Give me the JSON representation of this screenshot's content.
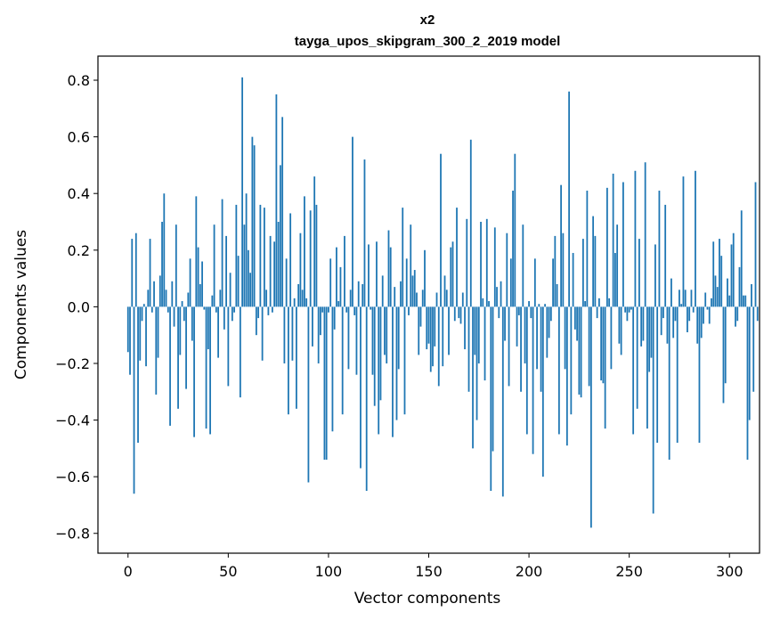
{
  "chart_data": {
    "type": "bar",
    "title_line1": "x2",
    "title_line2": "tayga_upos_skipgram_300_2_2019 model",
    "xlabel": "Vector components",
    "ylabel": "Components values",
    "xlim": [
      -15,
      315
    ],
    "ylim": [
      -0.87,
      0.885
    ],
    "xticks": [
      0,
      50,
      100,
      150,
      200,
      250,
      300
    ],
    "yticks": [
      -0.8,
      -0.6,
      -0.4,
      -0.2,
      0.0,
      0.2,
      0.4,
      0.6,
      0.8
    ],
    "ytick_labels": [
      "−0.8",
      "−0.6",
      "−0.4",
      "−0.2",
      "0.0",
      "0.2",
      "0.4",
      "0.6",
      "0.8"
    ],
    "bar_color": "#1f77b4",
    "grid": false,
    "values": [
      -0.16,
      -0.24,
      0.24,
      -0.66,
      0.26,
      -0.48,
      -0.19,
      -0.05,
      0.01,
      -0.21,
      0.06,
      0.24,
      -0.02,
      0.09,
      -0.31,
      -0.18,
      0.11,
      0.3,
      0.4,
      0.06,
      -0.02,
      -0.42,
      0.09,
      -0.07,
      0.29,
      -0.36,
      -0.17,
      0.02,
      -0.05,
      -0.29,
      0.05,
      0.17,
      -0.12,
      -0.46,
      0.39,
      0.21,
      0.08,
      0.16,
      -0.01,
      -0.43,
      -0.15,
      -0.45,
      0.04,
      0.29,
      -0.02,
      -0.18,
      0.06,
      0.38,
      -0.08,
      0.25,
      -0.28,
      0.12,
      -0.05,
      -0.02,
      0.36,
      0.18,
      -0.32,
      0.81,
      0.29,
      0.4,
      0.2,
      0.12,
      0.6,
      0.57,
      -0.1,
      -0.04,
      0.36,
      -0.19,
      0.35,
      0.06,
      -0.03,
      0.25,
      -0.02,
      0.23,
      0.75,
      0.3,
      0.5,
      0.67,
      -0.2,
      0.17,
      -0.38,
      0.33,
      -0.19,
      0.03,
      -0.36,
      0.08,
      0.26,
      0.06,
      0.39,
      0.03,
      -0.62,
      0.34,
      -0.14,
      0.46,
      0.36,
      -0.2,
      -0.1,
      -0.02,
      -0.54,
      -0.54,
      -0.02,
      0.17,
      -0.44,
      -0.08,
      0.21,
      0.02,
      0.14,
      -0.38,
      0.25,
      -0.02,
      -0.22,
      0.06,
      0.6,
      -0.03,
      -0.24,
      0.09,
      -0.57,
      0.08,
      0.52,
      -0.65,
      0.22,
      -0.01,
      -0.24,
      -0.35,
      0.23,
      -0.45,
      -0.33,
      0.11,
      -0.17,
      -0.2,
      0.27,
      0.21,
      -0.46,
      0.07,
      -0.4,
      -0.22,
      0.09,
      0.35,
      -0.38,
      0.17,
      -0.03,
      0.29,
      0.11,
      0.13,
      0.05,
      -0.17,
      -0.07,
      0.06,
      0.2,
      -0.15,
      -0.13,
      -0.23,
      -0.21,
      -0.14,
      0.05,
      -0.28,
      0.54,
      -0.21,
      0.11,
      0.06,
      -0.17,
      0.21,
      0.23,
      -0.05,
      0.35,
      -0.04,
      -0.06,
      0.05,
      -0.15,
      0.31,
      -0.3,
      0.59,
      -0.5,
      -0.17,
      -0.4,
      -0.2,
      0.3,
      0.03,
      -0.26,
      0.31,
      0.02,
      -0.65,
      -0.51,
      0.28,
      0.07,
      -0.04,
      0.09,
      -0.67,
      -0.12,
      0.26,
      -0.28,
      0.17,
      0.41,
      0.54,
      -0.14,
      -0.03,
      -0.3,
      0.29,
      -0.2,
      -0.45,
      0.02,
      -0.04,
      -0.52,
      0.17,
      -0.22,
      0.01,
      -0.3,
      -0.6,
      0.01,
      -0.18,
      -0.11,
      -0.05,
      0.17,
      0.25,
      0.08,
      -0.45,
      0.43,
      0.26,
      -0.22,
      -0.49,
      0.76,
      -0.38,
      0.19,
      -0.08,
      -0.12,
      -0.31,
      -0.32,
      0.24,
      0.02,
      0.41,
      -0.28,
      -0.78,
      0.32,
      0.25,
      -0.04,
      0.03,
      -0.26,
      -0.27,
      -0.43,
      0.42,
      0.03,
      -0.22,
      0.47,
      0.19,
      0.29,
      -0.13,
      -0.17,
      0.44,
      -0.02,
      -0.05,
      -0.02,
      -0.01,
      -0.45,
      0.48,
      -0.36,
      0.24,
      -0.14,
      -0.12,
      0.51,
      -0.43,
      -0.23,
      -0.18,
      -0.73,
      0.22,
      -0.48,
      0.41,
      -0.1,
      -0.04,
      0.36,
      -0.13,
      -0.54,
      0.1,
      -0.11,
      -0.05,
      -0.48,
      0.06,
      0.01,
      0.46,
      0.06,
      -0.09,
      -0.05,
      0.06,
      -0.02,
      0.48,
      -0.13,
      -0.48,
      -0.11,
      -0.06,
      0.05,
      -0.01,
      -0.06,
      0.03,
      0.23,
      0.11,
      0.07,
      0.24,
      0.18,
      -0.34,
      -0.27,
      0.1,
      0.04,
      0.22,
      0.26,
      -0.07,
      -0.05,
      0.14,
      0.34,
      0.04,
      0.04,
      -0.54,
      -0.4,
      0.08,
      -0.3,
      0.44,
      -0.05
    ]
  }
}
